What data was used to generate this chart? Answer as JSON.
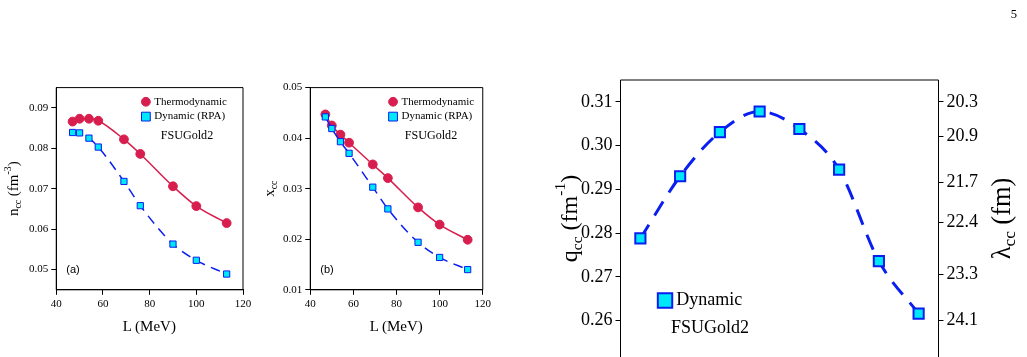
{
  "chart_data": [
    {
      "type": "line",
      "xlabel": "L (MeV)",
      "ylabel": "n$_{cc}$ (fm$^{-3}$)",
      "x": [
        47,
        50,
        54,
        58,
        69,
        76,
        90,
        100,
        113
      ],
      "xlim": [
        40,
        120
      ],
      "xticks": [
        40,
        60,
        80,
        100,
        120
      ],
      "ylim": [
        0.045,
        0.095
      ],
      "yticks": [
        0.05,
        0.06,
        0.07,
        0.08,
        0.09
      ],
      "legend": "top right",
      "annotations": [
        "FSUGold2",
        "(a)"
      ],
      "series": [
        {
          "name": "Thermodynamic",
          "color": "#d81e4e",
          "marker": "circle",
          "line_style": "solid",
          "values": [
            0.0866,
            0.0873,
            0.0873,
            0.0868,
            0.0822,
            0.0786,
            0.0706,
            0.0657,
            0.0615
          ]
        },
        {
          "name": "Dynamic (RPA)",
          "color": "#0a1ef0",
          "marker": "square",
          "line_style": "dashed",
          "values": [
            0.0839,
            0.0838,
            0.0825,
            0.0803,
            0.0718,
            0.0658,
            0.0563,
            0.0523,
            0.0489
          ]
        }
      ]
    },
    {
      "type": "line",
      "xlabel": "L (MeV)",
      "ylabel": "x$_{cc}$",
      "x": [
        47,
        50,
        54,
        58,
        69,
        76,
        90,
        100,
        113
      ],
      "xlim": [
        40,
        120
      ],
      "xticks": [
        40,
        60,
        80,
        100,
        120
      ],
      "ylim": [
        0.01,
        0.05
      ],
      "yticks": [
        0.01,
        0.02,
        0.03,
        0.04,
        0.05
      ],
      "legend": "top right",
      "annotations": [
        "FSUGold2",
        "(b)"
      ],
      "series": [
        {
          "name": "Thermodynamic",
          "color": "#d81e4e",
          "marker": "circle",
          "line_style": "solid",
          "values": [
            0.0447,
            0.0425,
            0.0407,
            0.0391,
            0.0348,
            0.0321,
            0.0263,
            0.0229,
            0.0199
          ]
        },
        {
          "name": "Dynamic (RPA)",
          "color": "#0a1ef0",
          "marker": "square",
          "line_style": "dashed",
          "values": [
            0.0442,
            0.0419,
            0.0393,
            0.037,
            0.0303,
            0.026,
            0.0194,
            0.0164,
            0.014
          ]
        }
      ]
    },
    {
      "type": "line",
      "ylabel": "q$_{cc}$ (fm$^{-1}$)",
      "y2label": "λ$_{cc}$ (fm)",
      "categories": [
        null,
        null,
        null,
        null,
        null,
        null,
        null,
        null
      ],
      "ylim": [
        0.245,
        0.315
      ],
      "yticks": [
        0.26,
        0.27,
        0.28,
        0.29,
        {
          "value": 0.3,
          "label": "0.30"
        },
        0.31
      ],
      "y2lim": [
        25.24,
        19.92
      ],
      "y2ticks": [
        24.1,
        23.3,
        22.4,
        21.7,
        20.9,
        20.3
      ],
      "legend": "bottom left",
      "annotations": [
        "FSUGold2",
        "5"
      ],
      "series": [
        {
          "name": "Dynamic",
          "color": "#0a1ef0",
          "marker": "square",
          "line_style": "dashed",
          "values": [
            0.2788,
            0.293,
            0.3031,
            0.3078,
            0.3038,
            0.2945,
            0.2736,
            0.2616
          ]
        }
      ]
    }
  ]
}
